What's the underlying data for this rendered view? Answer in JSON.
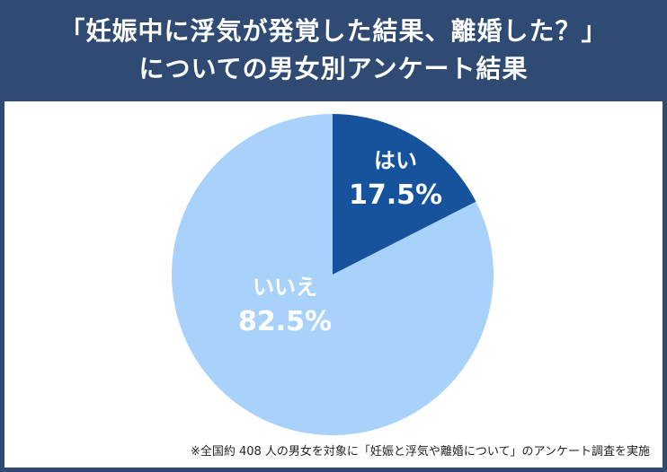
{
  "chart_data": {
    "type": "pie",
    "title": "「妊娠中に浮気が発覚した結果、離婚した？」",
    "subtitle": "についての男女別アンケート結果",
    "slices": [
      {
        "label": "はい",
        "value": 17.5,
        "display": "17.5%",
        "color": "#17529c"
      },
      {
        "label": "いいえ",
        "value": 82.5,
        "display": "82.5%",
        "color": "#a9d2fb"
      }
    ],
    "footnote": "※全国約 408 人の男女を対象に「妊娠と浮気や離婚について」のアンケート調査を実施"
  }
}
